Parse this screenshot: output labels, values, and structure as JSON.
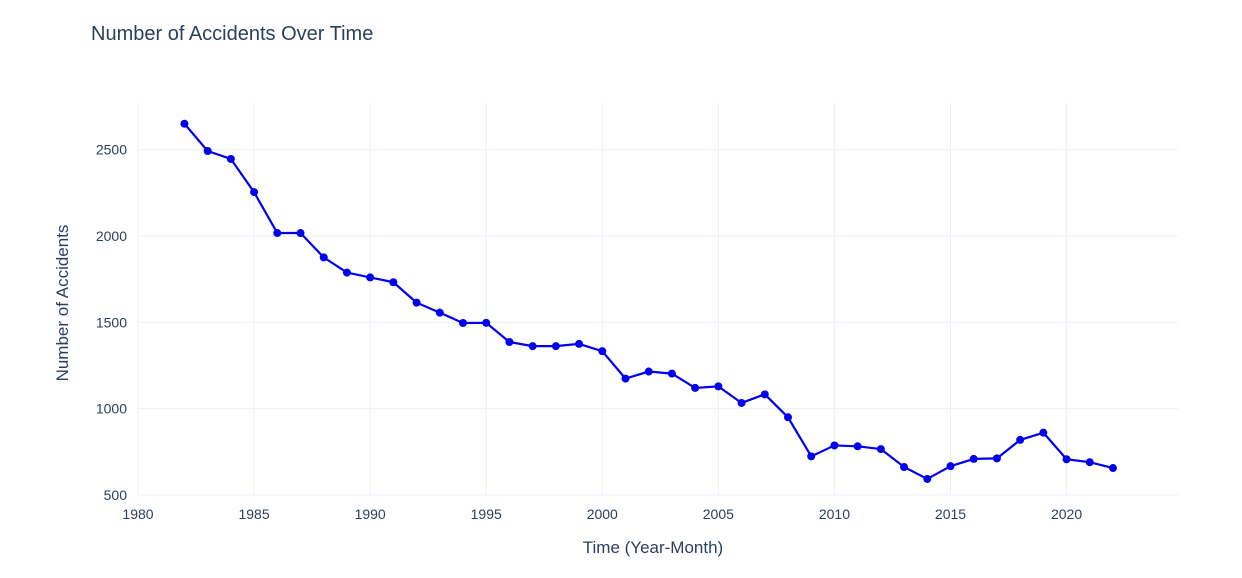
{
  "chart_data": {
    "type": "line",
    "title": "Number of Accidents Over Time",
    "xlabel": "Time (Year-Month)",
    "ylabel": "Number of Accidents",
    "xlim": [
      1980,
      2024.8
    ],
    "ylim": [
      500,
      2770
    ],
    "x_ticks": [
      1980,
      1985,
      1990,
      1995,
      2000,
      2005,
      2010,
      2015,
      2020
    ],
    "y_ticks": [
      500,
      1000,
      1500,
      2000,
      2500
    ],
    "grid": true,
    "legend": "none",
    "mode": "lines+markers",
    "color": "#0000ee",
    "series": [
      {
        "x": [
          1982,
          1983,
          1984,
          1985,
          1986,
          1987,
          1988,
          1989,
          1990,
          1991,
          1992,
          1993,
          1994,
          1995,
          1996,
          1997,
          1998,
          1999,
          2000,
          2001,
          2002,
          2003,
          2004,
          2005,
          2006,
          2007,
          2008,
          2009,
          2010,
          2011,
          2012,
          2013,
          2014,
          2015,
          2016,
          2017,
          2018,
          2019,
          2020,
          2021,
          2022
        ],
        "y": [
          2650,
          2492,
          2446,
          2254,
          2017,
          2017,
          1876,
          1788,
          1760,
          1732,
          1614,
          1556,
          1496,
          1497,
          1386,
          1362,
          1362,
          1375,
          1333,
          1174,
          1215,
          1203,
          1120,
          1129,
          1033,
          1083,
          950,
          724,
          787,
          782,
          766,
          662,
          593,
          667,
          709,
          712,
          819,
          861,
          707,
          690,
          656
        ]
      }
    ]
  }
}
